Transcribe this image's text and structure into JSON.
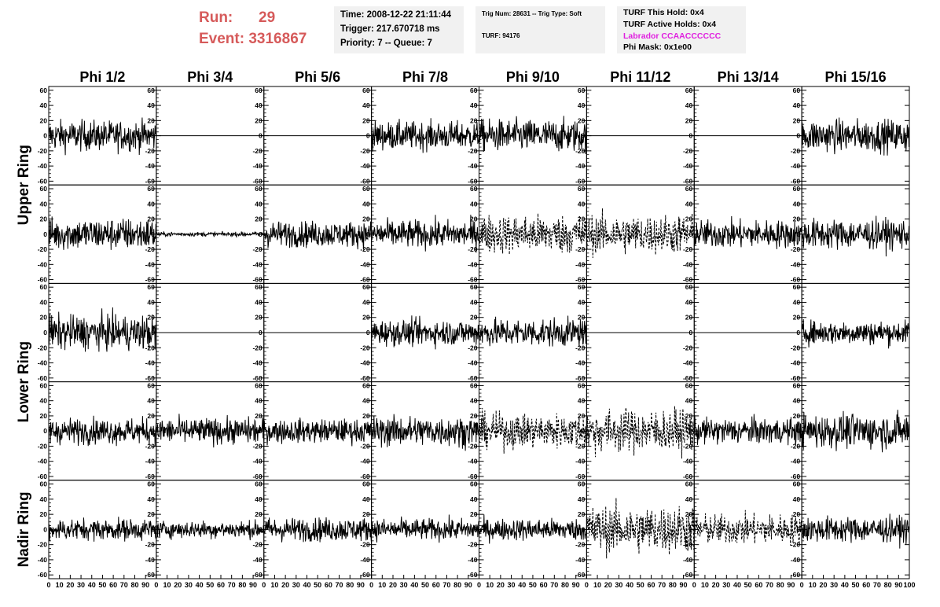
{
  "header": {
    "run_label": "Run:",
    "run_value": "29",
    "event_label": "Event:",
    "event_value": "3316867"
  },
  "info_time": {
    "time": "Time: 2008-12-22 21:11:44",
    "trigger": "Trigger: 217.670718 ms",
    "priority": "Priority: 7 -- Queue: 7"
  },
  "info_trig": {
    "trig": "Trig Num: 28631 -- Trig Type: Soft",
    "turf": "TURF: 94176"
  },
  "info_turf": {
    "this_hold": "TURF This Hold: 0x4",
    "active_holds": "TURF Active Holds: 0x4",
    "labrador": "Labrador CCAACCCCCC",
    "labrador_color": "#e020e0",
    "phi_mask": "Phi Mask: 0x1e00"
  },
  "colors": {
    "header_accent": "#d65a5a",
    "info_bg": "#f1f1f1",
    "trace": "#000000"
  },
  "chart_data": {
    "type": "line",
    "columns": [
      "Phi 1/2",
      "Phi 3/4",
      "Phi 5/6",
      "Phi 7/8",
      "Phi 9/10",
      "Phi 11/12",
      "Phi 13/14",
      "Phi 15/16"
    ],
    "ring_labels": [
      "Upper Ring",
      "Lower Ring",
      "Nadir Ring"
    ],
    "ylim": [
      -65,
      65
    ],
    "yticks": [
      -60,
      -40,
      -20,
      0,
      20,
      40,
      60
    ],
    "xlim": [
      0,
      100
    ],
    "xticks": [
      0,
      10,
      20,
      30,
      40,
      50,
      60,
      70,
      80,
      90,
      100
    ],
    "samples": 260,
    "rows": [
      {
        "ring": "Upper Ring",
        "channels": [
          {
            "amp": 14,
            "style": "solid"
          },
          {
            "amp": 0,
            "style": "solid"
          },
          {
            "amp": 0,
            "style": "solid"
          },
          {
            "amp": 13,
            "style": "solid"
          },
          {
            "amp": 15,
            "style": "solid"
          },
          {
            "amp": 0,
            "style": "solid"
          },
          {
            "amp": 0,
            "style": "solid"
          },
          {
            "amp": 15,
            "style": "solid"
          }
        ]
      },
      {
        "ring": "Upper Ring",
        "channels": [
          {
            "amp": 15,
            "style": "solid"
          },
          {
            "amp": 2,
            "style": "solid"
          },
          {
            "amp": 12,
            "style": "solid"
          },
          {
            "amp": 13,
            "style": "solid"
          },
          {
            "amp": 18,
            "style": "dashed"
          },
          {
            "amp": 18,
            "style": "dashed"
          },
          {
            "amp": 13,
            "style": "solid"
          },
          {
            "amp": 14,
            "style": "solid"
          }
        ]
      },
      {
        "ring": "Lower Ring",
        "channels": [
          {
            "amp": 16,
            "style": "solid"
          },
          {
            "amp": 0,
            "style": "solid"
          },
          {
            "amp": 0,
            "style": "solid"
          },
          {
            "amp": 12,
            "style": "solid"
          },
          {
            "amp": 13,
            "style": "solid"
          },
          {
            "amp": 0,
            "style": "solid"
          },
          {
            "amp": 0,
            "style": "solid"
          },
          {
            "amp": 11,
            "style": "solid"
          }
        ]
      },
      {
        "ring": "Lower Ring",
        "channels": [
          {
            "amp": 12,
            "style": "solid"
          },
          {
            "amp": 12,
            "style": "solid"
          },
          {
            "amp": 11,
            "style": "solid"
          },
          {
            "amp": 14,
            "style": "solid"
          },
          {
            "amp": 16,
            "style": "dashed"
          },
          {
            "amp": 20,
            "style": "dashed"
          },
          {
            "amp": 12,
            "style": "solid"
          },
          {
            "amp": 16,
            "style": "solid"
          }
        ]
      },
      {
        "ring": "Nadir Ring",
        "channels": [
          {
            "amp": 10,
            "style": "solid"
          },
          {
            "amp": 8,
            "style": "solid"
          },
          {
            "amp": 11,
            "style": "solid"
          },
          {
            "amp": 10,
            "style": "solid"
          },
          {
            "amp": 10,
            "style": "solid"
          },
          {
            "amp": 22,
            "style": "dashed"
          },
          {
            "amp": 14,
            "style": "dashed"
          },
          {
            "amp": 12,
            "style": "solid"
          }
        ]
      }
    ]
  }
}
